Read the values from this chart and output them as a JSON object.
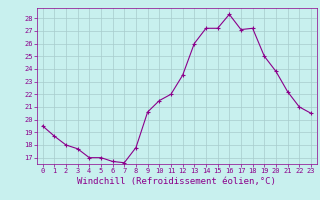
{
  "x": [
    0,
    1,
    2,
    3,
    4,
    5,
    6,
    7,
    8,
    9,
    10,
    11,
    12,
    13,
    14,
    15,
    16,
    17,
    18,
    19,
    20,
    21,
    22,
    23
  ],
  "y": [
    19.5,
    18.7,
    18.0,
    17.7,
    17.0,
    17.0,
    16.7,
    16.6,
    17.8,
    20.6,
    21.5,
    22.0,
    23.5,
    26.0,
    27.2,
    27.2,
    28.3,
    27.1,
    27.2,
    25.0,
    23.8,
    22.2,
    21.0,
    20.5
  ],
  "line_color": "#8B008B",
  "marker": "+",
  "marker_color": "#8B008B",
  "bg_color": "#C8F0EE",
  "grid_color": "#A8CCCC",
  "xlabel": "Windchill (Refroidissement éolien,°C)",
  "xlabel_color": "#8B008B",
  "ylim": [
    16.5,
    28.8
  ],
  "yticks": [
    17,
    18,
    19,
    20,
    21,
    22,
    23,
    24,
    25,
    26,
    27,
    28
  ],
  "xticks": [
    0,
    1,
    2,
    3,
    4,
    5,
    6,
    7,
    8,
    9,
    10,
    11,
    12,
    13,
    14,
    15,
    16,
    17,
    18,
    19,
    20,
    21,
    22,
    23
  ],
  "tick_color": "#8B008B",
  "tick_fontsize": 5.0,
  "xlabel_fontsize": 6.5,
  "xlim": [
    -0.5,
    23.5
  ]
}
